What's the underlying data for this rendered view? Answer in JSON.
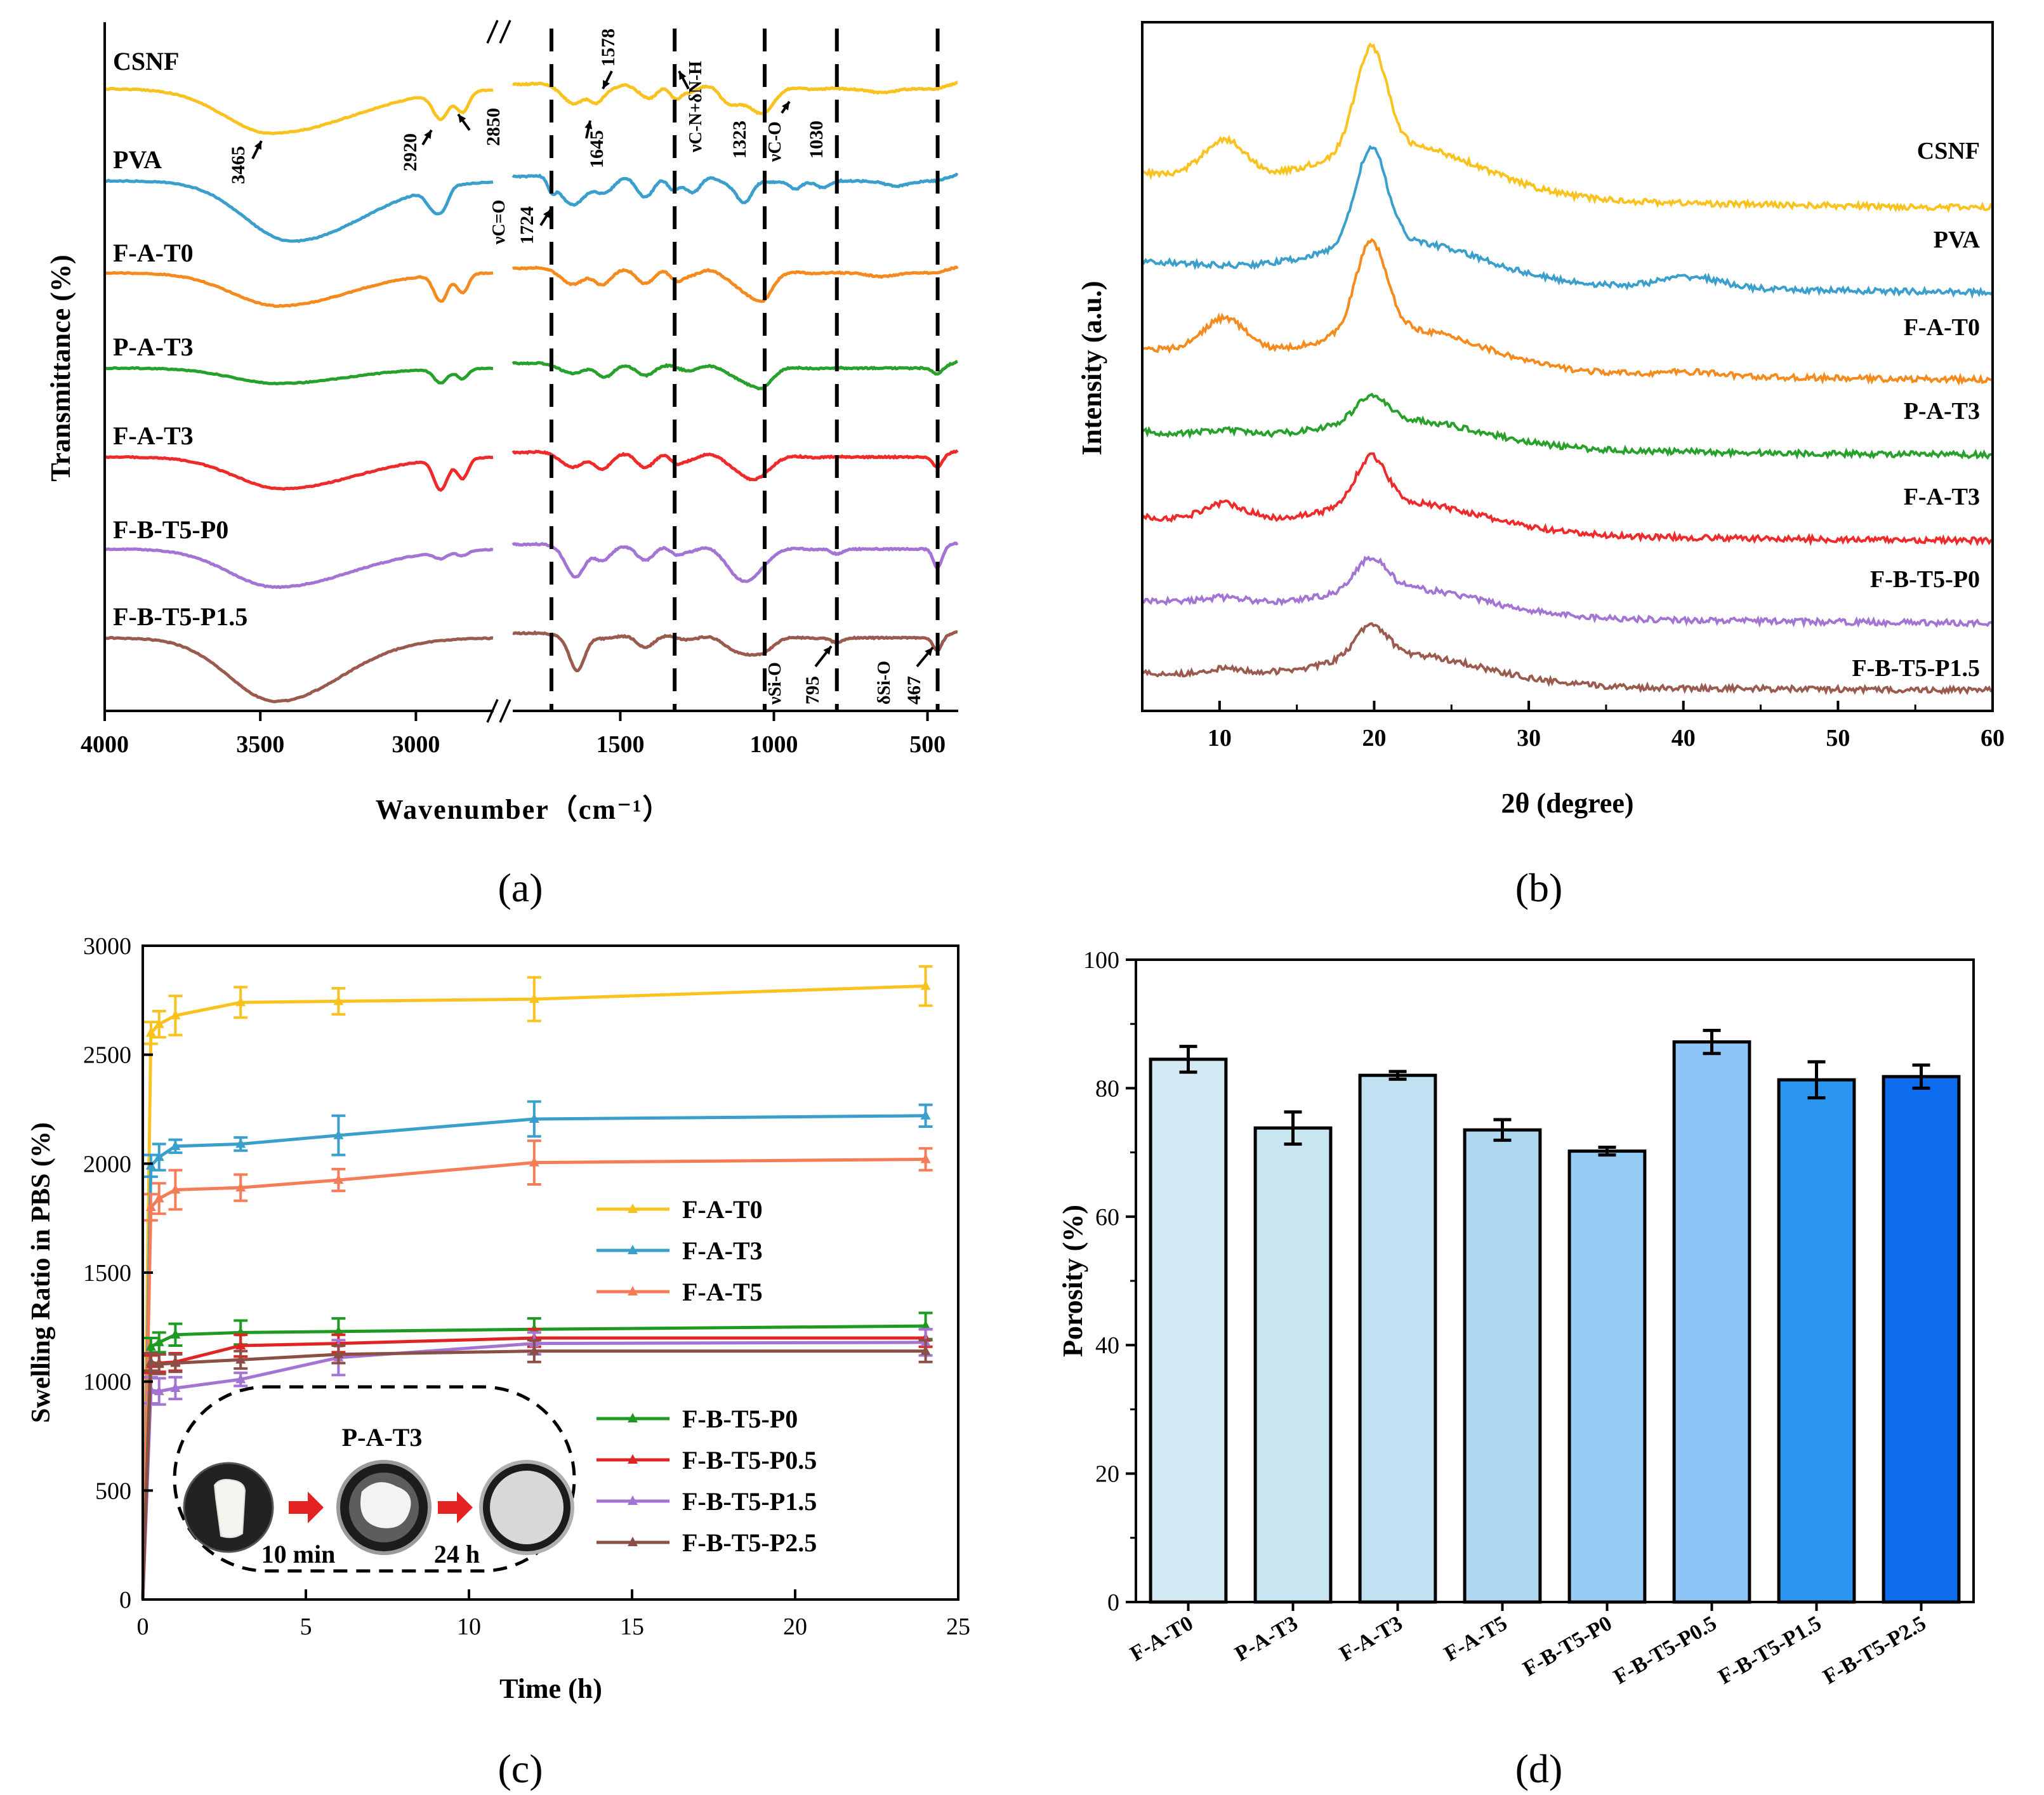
{
  "figure": {
    "colors": {
      "yellow": "#F9C21F",
      "blue": "#3A9FCC",
      "orange": "#F58A1E",
      "green": "#28A02C",
      "red": "#EE2A2A",
      "purple": "#A374D3",
      "brown": "#9A5B4E",
      "salmon": "#F47C57",
      "darkred": "#E02424",
      "darkbrown": "#8B4F45",
      "darkgreen": "#1E9A22"
    }
  },
  "chart_data": [
    {
      "id": "a",
      "panel_label": "(a)",
      "type": "line",
      "title": "",
      "xlabel": "Wavenumber（cm⁻¹）",
      "ylabel": "Transmittance (%)",
      "xlim": [
        4000,
        400
      ],
      "axis_break": [
        2750,
        1850
      ],
      "xticks": [
        "4000",
        "3500",
        "3000",
        "1500",
        "1000",
        "500"
      ],
      "series": [
        {
          "name": "CSNF",
          "color": "#F9C21F"
        },
        {
          "name": "PVA",
          "color": "#3A9FCC"
        },
        {
          "name": "F-A-T0",
          "color": "#F58A1E"
        },
        {
          "name": "P-A-T3",
          "color": "#28A02C"
        },
        {
          "name": "F-A-T3",
          "color": "#EE2A2A"
        },
        {
          "name": "F-B-T5-P0",
          "color": "#A374D3"
        },
        {
          "name": "F-B-T5-P1.5",
          "color": "#9A5B4E"
        }
      ],
      "dashed_lines_at": [
        1724,
        1323,
        1030,
        795,
        467
      ],
      "annotations": {
        "p3465": "3465",
        "p2920": "2920",
        "p2850": "2850",
        "p1645": "1645",
        "p1578": "1578",
        "p1323": "1323",
        "p1030": "1030",
        "p1724": "1724",
        "p795": "795",
        "p467": "467",
        "vc_o_label": "ν",
        "vc_o_sub": "C=O",
        "vcn_label": "ν",
        "vcn_sub": "C-N",
        "vcn_plus": "+δ",
        "vcn_sub2": "N-H",
        "vco_label": "ν",
        "vco_sub": "C-O",
        "vsio_label": "ν",
        "vsio_sub": "Si-O",
        "dsio_label": "δ",
        "dsio_sub": "Si-O"
      }
    },
    {
      "id": "b",
      "panel_label": "(b)",
      "type": "line",
      "title": "",
      "xlabel": "2θ (degree)",
      "ylabel": "Intensity (a.u.)",
      "xlim": [
        5,
        60
      ],
      "xticks": [
        10,
        20,
        30,
        40,
        50,
        60
      ],
      "series": [
        {
          "name": "CSNF",
          "color": "#F9C21F"
        },
        {
          "name": "PVA",
          "color": "#3A9FCC"
        },
        {
          "name": "F-A-T0",
          "color": "#F58A1E"
        },
        {
          "name": "P-A-T3",
          "color": "#28A02C"
        },
        {
          "name": "F-A-T3",
          "color": "#EE2A2A"
        },
        {
          "name": "F-B-T5-P0",
          "color": "#A374D3"
        },
        {
          "name": "F-B-T5-P1.5",
          "color": "#9A5B4E"
        }
      ]
    },
    {
      "id": "c",
      "panel_label": "(c)",
      "type": "line",
      "title": "",
      "xlabel": "Time (h)",
      "ylabel": "Swelling Ratio in PBS (%)",
      "xlim": [
        0,
        25
      ],
      "ylim": [
        0,
        3000
      ],
      "xticks": [
        0,
        5,
        10,
        15,
        20,
        25
      ],
      "yticks": [
        0,
        500,
        1000,
        1500,
        2000,
        2500,
        3000
      ],
      "x": [
        0,
        0.25,
        0.5,
        1,
        3,
        6,
        12,
        24
      ],
      "series": [
        {
          "name": "F-A-T0",
          "color": "#F9C21F",
          "values": [
            0,
            2600,
            2640,
            2680,
            2740,
            2745,
            2755,
            2815
          ],
          "err": [
            0,
            50,
            60,
            90,
            70,
            60,
            100,
            90
          ]
        },
        {
          "name": "F-A-T3",
          "color": "#3A9FCC",
          "values": [
            0,
            1990,
            2030,
            2080,
            2090,
            2130,
            2205,
            2220
          ],
          "err": [
            0,
            50,
            60,
            30,
            30,
            90,
            80,
            50
          ]
        },
        {
          "name": "F-A-T5",
          "color": "#F47C57",
          "values": [
            0,
            1800,
            1840,
            1880,
            1890,
            1925,
            2005,
            2020
          ],
          "err": [
            0,
            60,
            70,
            90,
            60,
            50,
            100,
            50
          ]
        },
        {
          "name": "F-B-T5-P0",
          "color": "#1E9A22",
          "values": [
            0,
            1160,
            1180,
            1215,
            1225,
            1230,
            1240,
            1255
          ],
          "err": [
            0,
            40,
            45,
            50,
            55,
            60,
            50,
            60
          ]
        },
        {
          "name": "F-B-T5-P0.5",
          "color": "#E02424",
          "values": [
            0,
            1080,
            1085,
            1090,
            1165,
            1175,
            1200,
            1200
          ],
          "err": [
            0,
            40,
            40,
            40,
            50,
            40,
            40,
            40
          ]
        },
        {
          "name": "F-B-T5-P1.5",
          "color": "#A374D3",
          "values": [
            0,
            960,
            955,
            970,
            1010,
            1110,
            1175,
            1180
          ],
          "err": [
            0,
            60,
            60,
            50,
            30,
            80,
            50,
            60
          ]
        },
        {
          "name": "F-B-T5-P2.5",
          "color": "#8B4F45",
          "values": [
            0,
            1090,
            1080,
            1085,
            1100,
            1125,
            1140,
            1140
          ],
          "err": [
            0,
            40,
            45,
            40,
            40,
            40,
            50,
            50
          ]
        }
      ],
      "inset": {
        "label": "P-A-T3",
        "time1": "10 min",
        "time2": "24 h"
      }
    },
    {
      "id": "d",
      "panel_label": "(d)",
      "type": "bar",
      "title": "",
      "xlabel": "",
      "ylabel": "Porosity (%)",
      "ylim": [
        0,
        100
      ],
      "yticks": [
        0,
        20,
        40,
        60,
        80,
        100
      ],
      "categories": [
        "F-A-T0",
        "P-A-T3",
        "F-A-T3",
        "F-A-T5",
        "F-B-T5-P0",
        "F-B-T5-P0.5",
        "F-B-T5-P1.5",
        "F-B-T5-P2.5"
      ],
      "values": [
        84.5,
        73.8,
        82.0,
        73.5,
        70.2,
        87.2,
        81.3,
        81.8
      ],
      "errors": [
        2.0,
        2.5,
        0.6,
        1.6,
        0.6,
        1.8,
        2.8,
        1.8
      ],
      "colors": [
        "#D3EAF5",
        "#C8E5F2",
        "#BFE1F1",
        "#AED8F0",
        "#95CCF6",
        "#8EC5F8",
        "#2A96F0",
        "#0E6CEE"
      ]
    }
  ]
}
